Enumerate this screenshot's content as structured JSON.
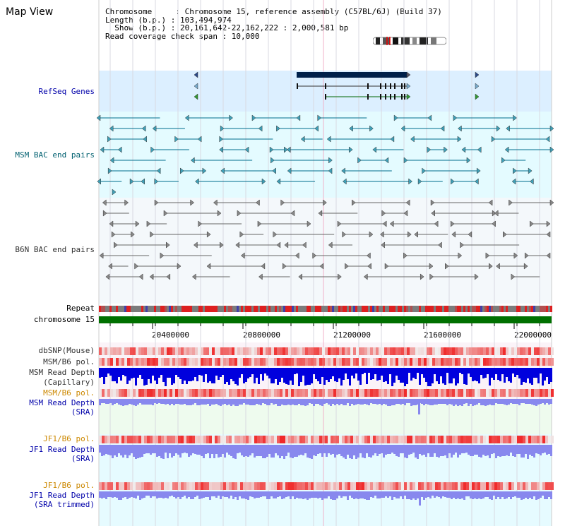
{
  "title": "Map View",
  "info": {
    "line1": "Chromosome     : Chromosome 15, reference assembly (C57BL/6J) (Build 37)",
    "line2": "Length (b.p.) : 103,494,974",
    "line3": "  Show (b.p.) : 20,161,642-22,162,222 : 2,000,581 bp",
    "line4": "Read coverage check span : 10,000"
  },
  "labels": {
    "refseq": "RefSeq Genes",
    "msm_bac": "MSM BAC end pairs",
    "b6n_bac": "B6N BAC end pairs",
    "repeat": "Repeat",
    "chromosome": "chromosome 15",
    "dbsnp": "dbSNP(Mouse)",
    "msm_pol1": "MSM/B6 pol.",
    "msm_depth_cap_1": "MSM Read Depth",
    "msm_depth_cap_2": "(Capillary)",
    "msm_pol2": "MSM/B6 pol.",
    "msm_depth_sra_1": "MSM Read Depth",
    "msm_depth_sra_2": "(SRA)",
    "jf1_pol1": "JF1/B6 pol.",
    "jf1_depth_sra_1": "JF1 Read Depth",
    "jf1_depth_sra_2": "(SRA)",
    "jf1_pol2": "JF1/B6 pol.",
    "jf1_depth_trim_1": "JF1 Read Depth",
    "jf1_depth_trim_2": "(SRA trimmed)"
  },
  "axis": {
    "ticks": [
      "20400000",
      "20800000",
      "21200000",
      "21600000",
      "22000000"
    ]
  },
  "colors": {
    "refseq_bg": "#dcefff",
    "msm_bg": "#e4fbff",
    "b6n_bg": "#f4f8fb",
    "chrom": "#007000",
    "depth_dark": "#0000dd",
    "depth_light": "#8888ee",
    "snp_red": "#ee3333",
    "teal": "#006c8c"
  }
}
